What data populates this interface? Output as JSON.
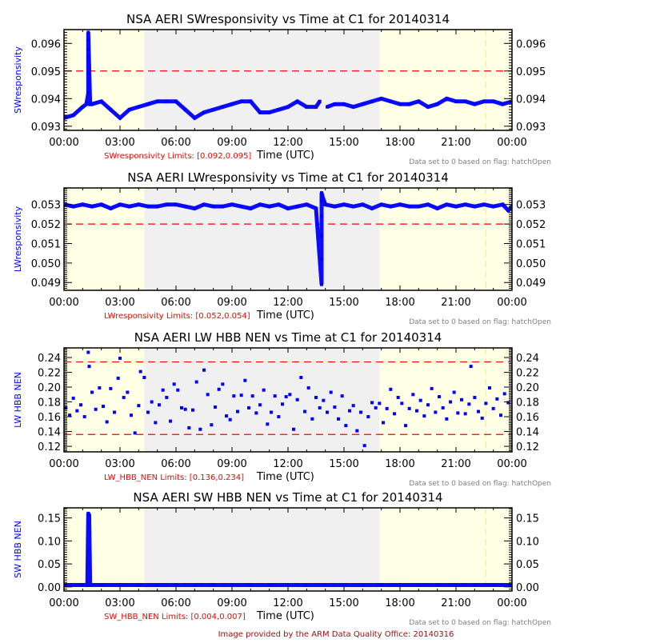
{
  "footer": "Image provided by the ARM Data Quality Office: 20140316",
  "colors": {
    "data": "#0000ff",
    "limit": "#ff0000",
    "night": "#ffffe6",
    "day": "#f0f0f0",
    "marker_line": "#ffff00",
    "note": "#808080",
    "footer": "#a01010"
  },
  "chart_data": [
    {
      "type": "line",
      "title": "NSA AERI SWresponsivity vs Time at C1 for 20140314",
      "ylabel": "SWresponsivity",
      "xlabel": "Time (UTC)",
      "limits_text": "SWresponsivity Limits: [0.092,0.095]",
      "note": "Data set to 0 based on flag: hatchOpen",
      "xlim": [
        0,
        24
      ],
      "ylim": [
        0.09285,
        0.0965
      ],
      "xticks": [
        "00:00",
        "03:00",
        "06:00",
        "09:00",
        "12:00",
        "15:00",
        "18:00",
        "21:00",
        "00:00"
      ],
      "yticks": [
        0.093,
        0.094,
        0.095,
        0.096
      ],
      "ytick_labels": [
        "0.093",
        "0.094",
        "0.095",
        "0.096"
      ],
      "limit_lines": [
        0.095
      ],
      "limit_style": "dashed",
      "shading": [
        {
          "from": 0,
          "to": 4.3,
          "kind": "night"
        },
        {
          "from": 4.3,
          "to": 16.9,
          "kind": "day"
        },
        {
          "from": 16.9,
          "to": 24,
          "kind": "night"
        }
      ],
      "vertical_marker": 22.6,
      "x": [
        0,
        0.5,
        1,
        1.2,
        1.3,
        1.3,
        1.3,
        1.3,
        1.3,
        1.3,
        1.4,
        1.5,
        2,
        2.5,
        3,
        3.5,
        4,
        4.5,
        5,
        5.5,
        6,
        6.5,
        7,
        7.5,
        8,
        8.5,
        9,
        9.5,
        10,
        10.5,
        11,
        11.5,
        12,
        12.5,
        13,
        13.5,
        13.7,
        null,
        14.1,
        14.5,
        15,
        15.5,
        16,
        16.5,
        17,
        17.5,
        18,
        18.5,
        19,
        19.5,
        20,
        20.5,
        21,
        21.5,
        22,
        22.5,
        23,
        23.5,
        24
      ],
      "y": [
        0.0933,
        0.0934,
        0.0937,
        0.0938,
        0.0942,
        0.0949,
        0.0955,
        0.0958,
        0.0961,
        0.0964,
        0.0938,
        0.0938,
        0.0939,
        0.0936,
        0.0933,
        0.0936,
        0.0937,
        0.0938,
        0.0939,
        0.0939,
        0.0939,
        0.0936,
        0.0933,
        0.0935,
        0.0936,
        0.0937,
        0.0938,
        0.0939,
        0.0939,
        0.0935,
        0.0935,
        0.0936,
        0.0937,
        0.0939,
        0.0937,
        0.0937,
        0.0939,
        null,
        0.0937,
        0.0938,
        0.0938,
        0.0937,
        0.0938,
        0.0939,
        0.094,
        0.0939,
        0.0938,
        0.0938,
        0.0939,
        0.0937,
        0.0938,
        0.094,
        0.0939,
        0.0939,
        0.0938,
        0.0939,
        0.0939,
        0.0938,
        0.0939
      ]
    },
    {
      "type": "line",
      "title": "NSA AERI LWresponsivity vs Time at C1 for 20140314",
      "ylabel": "LWresponsivity",
      "xlabel": "Time (UTC)",
      "limits_text": "LWresponsivity Limits: [0.052,0.054]",
      "note": "Data set to 0 based on flag: hatchOpen",
      "xlim": [
        0,
        24
      ],
      "ylim": [
        0.0486,
        0.05385
      ],
      "xticks": [
        "00:00",
        "03:00",
        "06:00",
        "09:00",
        "12:00",
        "15:00",
        "18:00",
        "21:00",
        "00:00"
      ],
      "yticks": [
        0.049,
        0.05,
        0.051,
        0.052,
        0.053
      ],
      "ytick_labels": [
        "0.049",
        "0.050",
        "0.051",
        "0.052",
        "0.053"
      ],
      "limit_lines": [
        0.052
      ],
      "limit_style": "dashed",
      "shading": [
        {
          "from": 0,
          "to": 4.3,
          "kind": "night"
        },
        {
          "from": 4.3,
          "to": 16.9,
          "kind": "day"
        },
        {
          "from": 16.9,
          "to": 24,
          "kind": "night"
        }
      ],
      "vertical_marker": 22.6,
      "x": [
        0,
        0.5,
        1,
        1.5,
        2,
        2.5,
        3,
        3.5,
        4,
        4.5,
        5,
        5.5,
        6,
        6.5,
        7,
        7.5,
        8,
        8.5,
        9,
        9.5,
        10,
        10.5,
        11,
        11.5,
        12,
        12.5,
        13,
        13.5,
        13.8,
        13.8,
        13.8,
        13.8,
        13.8,
        13.8,
        13.85,
        14,
        14.5,
        15,
        15.5,
        16,
        16.5,
        17,
        17.5,
        18,
        18.5,
        19,
        19.5,
        20,
        20.5,
        21,
        21.5,
        22,
        22.5,
        23,
        23.5,
        23.8,
        24
      ],
      "y": [
        0.053,
        0.0529,
        0.053,
        0.0529,
        0.053,
        0.0528,
        0.053,
        0.0529,
        0.053,
        0.0529,
        0.0529,
        0.053,
        0.053,
        0.0529,
        0.0528,
        0.053,
        0.0529,
        0.0529,
        0.053,
        0.0529,
        0.0528,
        0.053,
        0.0529,
        0.053,
        0.0528,
        0.0529,
        0.053,
        0.0528,
        0.0489,
        0.0502,
        0.0514,
        0.0524,
        0.0532,
        0.0536,
        0.0534,
        0.053,
        0.0529,
        0.053,
        0.0529,
        0.053,
        0.0528,
        0.053,
        0.0529,
        0.053,
        0.0529,
        0.0529,
        0.053,
        0.0528,
        0.053,
        0.0529,
        0.053,
        0.0529,
        0.053,
        0.0529,
        0.053,
        0.0527,
        0.0529
      ]
    },
    {
      "type": "scatter",
      "title": "NSA AERI LW HBB NEN vs Time at C1 for 20140314",
      "ylabel": "LW HBB NEN",
      "xlabel": "Time (UTC)",
      "limits_text": "LW_HBB_NEN Limits: [0.136,0.234]",
      "note": "Data set to 0 based on flag: hatchOpen",
      "xlim": [
        0,
        24
      ],
      "ylim": [
        0.1125,
        0.253
      ],
      "xticks": [
        "00:00",
        "03:00",
        "06:00",
        "09:00",
        "12:00",
        "15:00",
        "18:00",
        "21:00",
        "00:00"
      ],
      "yticks": [
        0.12,
        0.14,
        0.16,
        0.18,
        0.2,
        0.22,
        0.24
      ],
      "ytick_labels": [
        "0.12",
        "0.14",
        "0.16",
        "0.18",
        "0.20",
        "0.22",
        "0.24"
      ],
      "limit_lines": [
        0.136,
        0.234
      ],
      "limit_style": "dashed",
      "shading": [
        {
          "from": 0,
          "to": 4.3,
          "kind": "night"
        },
        {
          "from": 4.3,
          "to": 16.9,
          "kind": "day"
        },
        {
          "from": 16.9,
          "to": 24,
          "kind": "night"
        }
      ],
      "vertical_marker": 22.6,
      "x": [
        0.1,
        0.3,
        0.5,
        0.7,
        0.9,
        1.1,
        1.3,
        1.35,
        1.5,
        1.7,
        1.9,
        2.1,
        2.3,
        2.5,
        2.7,
        2.9,
        3.0,
        3.2,
        3.4,
        3.6,
        3.8,
        4.0,
        4.1,
        4.3,
        4.5,
        4.7,
        4.9,
        5.1,
        5.3,
        5.5,
        5.7,
        5.9,
        6.1,
        6.3,
        6.5,
        6.7,
        6.9,
        7.1,
        7.3,
        7.5,
        7.7,
        7.9,
        8.1,
        8.3,
        8.5,
        8.7,
        8.9,
        9.1,
        9.3,
        9.5,
        9.7,
        9.9,
        10.1,
        10.3,
        10.5,
        10.7,
        10.9,
        11.1,
        11.3,
        11.5,
        11.7,
        11.9,
        12.1,
        12.3,
        12.5,
        12.7,
        12.9,
        13.1,
        13.3,
        13.5,
        13.7,
        13.9,
        14.1,
        14.3,
        14.5,
        14.7,
        14.9,
        15.1,
        15.3,
        15.5,
        15.7,
        15.9,
        16.1,
        16.3,
        16.5,
        16.7,
        16.9,
        17.1,
        17.3,
        17.5,
        17.7,
        17.9,
        18.1,
        18.3,
        18.5,
        18.7,
        18.9,
        19.1,
        19.3,
        19.5,
        19.7,
        19.9,
        20.1,
        20.3,
        20.5,
        20.7,
        20.9,
        21.1,
        21.3,
        21.5,
        21.7,
        21.8,
        22.0,
        22.2,
        22.4,
        22.6,
        22.8,
        23.0,
        23.2,
        23.4,
        23.6,
        23.8
      ],
      "y": [
        0.172,
        0.162,
        0.185,
        0.168,
        0.176,
        0.16,
        0.247,
        0.228,
        0.193,
        0.17,
        0.199,
        0.174,
        0.153,
        0.198,
        0.166,
        0.212,
        0.239,
        0.186,
        0.193,
        0.162,
        0.138,
        0.175,
        0.221,
        0.213,
        0.166,
        0.18,
        0.152,
        0.176,
        0.196,
        0.186,
        0.154,
        0.204,
        0.196,
        0.172,
        0.17,
        0.145,
        0.169,
        0.207,
        0.143,
        0.223,
        0.19,
        0.149,
        0.173,
        0.197,
        0.204,
        0.161,
        0.156,
        0.188,
        0.167,
        0.189,
        0.209,
        0.172,
        0.188,
        0.165,
        0.176,
        0.196,
        0.15,
        0.166,
        0.188,
        0.16,
        0.177,
        0.187,
        0.19,
        0.143,
        0.183,
        0.213,
        0.167,
        0.199,
        0.157,
        0.186,
        0.172,
        0.182,
        0.166,
        0.193,
        0.173,
        0.157,
        0.188,
        0.148,
        0.168,
        0.175,
        0.141,
        0.166,
        0.121,
        0.16,
        0.179,
        0.172,
        0.178,
        0.152,
        0.171,
        0.197,
        0.164,
        0.186,
        0.178,
        0.148,
        0.171,
        0.19,
        0.168,
        0.182,
        0.161,
        0.176,
        0.198,
        0.166,
        0.187,
        0.172,
        0.157,
        0.18,
        0.193,
        0.165,
        0.183,
        0.164,
        0.177,
        0.228,
        0.186,
        0.167,
        0.158,
        0.178,
        0.199,
        0.171,
        0.184,
        0.162,
        0.191,
        0.179
      ]
    },
    {
      "type": "line",
      "title": "NSA AERI SW HBB NEN vs Time at C1 for 20140314",
      "ylabel": "SW HBB NEN",
      "xlabel": "Time (UTC)",
      "limits_text": "SW_HBB_NEN Limits: [0.004,0.007]",
      "note": "Data set to 0 based on flag: hatchOpen",
      "xlim": [
        0,
        24
      ],
      "ylim": [
        -0.009,
        0.172
      ],
      "xticks": [
        "00:00",
        "03:00",
        "06:00",
        "09:00",
        "12:00",
        "15:00",
        "18:00",
        "21:00",
        "00:00"
      ],
      "yticks": [
        0.0,
        0.05,
        0.1,
        0.15
      ],
      "ytick_labels": [
        "0.00",
        "0.05",
        "0.10",
        "0.15"
      ],
      "limit_lines": [
        0.004,
        0.007
      ],
      "limit_style": "dashed",
      "shading": [
        {
          "from": 0,
          "to": 4.3,
          "kind": "night"
        },
        {
          "from": 4.3,
          "to": 16.9,
          "kind": "day"
        },
        {
          "from": 16.9,
          "to": 24,
          "kind": "night"
        }
      ],
      "vertical_marker": 22.6,
      "x": [
        0,
        1,
        1.25,
        1.3,
        1.35,
        1.4,
        2,
        3,
        4,
        5,
        6,
        7,
        8,
        9,
        10,
        11,
        12,
        13,
        14,
        15,
        16,
        17,
        18,
        19,
        20,
        21,
        22,
        23,
        24
      ],
      "y": [
        0.004,
        0.004,
        0.004,
        0.16,
        0.156,
        0.004,
        0.004,
        0.004,
        0.004,
        0.004,
        0.004,
        0.004,
        0.004,
        0.004,
        0.004,
        0.004,
        0.004,
        0.004,
        0.004,
        0.004,
        0.004,
        0.004,
        0.004,
        0.004,
        0.004,
        0.004,
        0.004,
        0.004,
        0.004
      ]
    }
  ]
}
